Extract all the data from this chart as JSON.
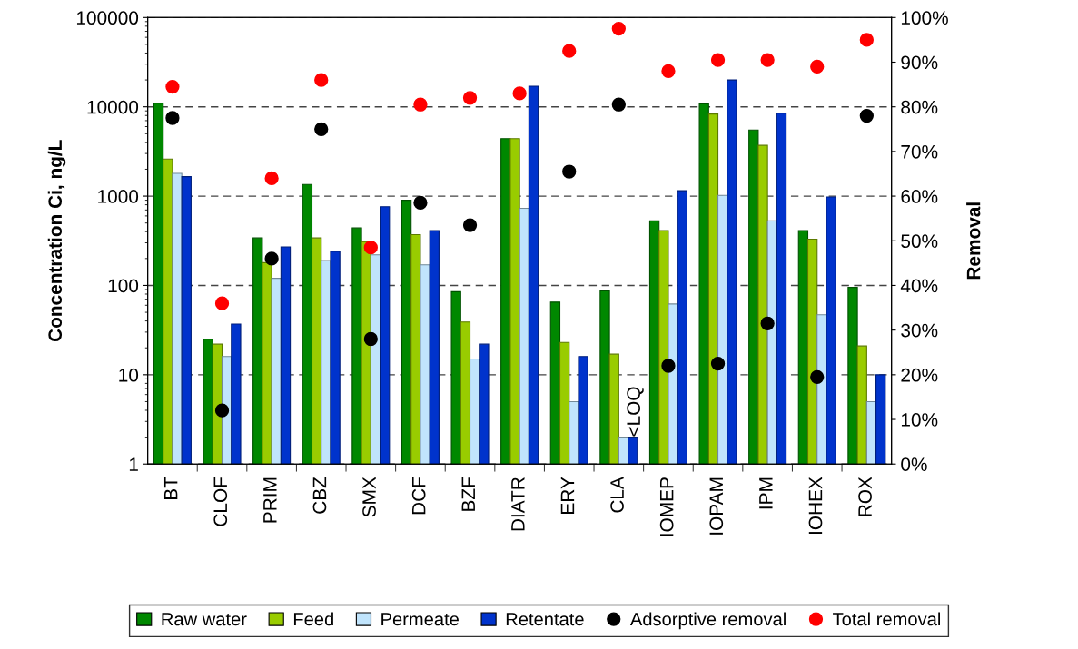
{
  "chart_data": {
    "type": "bar",
    "ylabel": "Concentration Ci, ng/L",
    "y2label": "Removal",
    "categories": [
      "BT",
      "CLOF",
      "PRIM",
      "CBZ",
      "SMX",
      "DCF",
      "BZF",
      "DIATR",
      "ERY",
      "CLA",
      "IOMEP",
      "IOPAM",
      "IPM",
      "IOHEX",
      "ROX"
    ],
    "series": [
      {
        "name": "Raw water",
        "color": "#008800",
        "values": [
          11000,
          25,
          340,
          1350,
          440,
          900,
          85,
          4400,
          65,
          87,
          530,
          10800,
          5500,
          410,
          95
        ]
      },
      {
        "name": "Feed",
        "color": "#99cc00",
        "values": [
          2600,
          22,
          180,
          340,
          310,
          370,
          39,
          4400,
          23,
          17,
          410,
          8300,
          3700,
          330,
          21
        ]
      },
      {
        "name": "Permeate",
        "color": "#c0e4fc",
        "values": [
          1800,
          16,
          120,
          190,
          220,
          170,
          15,
          730,
          5,
          2,
          62,
          1020,
          530,
          47,
          5
        ]
      },
      {
        "name": "Retentate",
        "color": "#0033cc",
        "values": [
          1650,
          37,
          270,
          240,
          760,
          410,
          22,
          17000,
          16,
          2,
          1150,
          20000,
          8500,
          980,
          10
        ]
      },
      {
        "name": "Adsorptive removal",
        "type": "scatter",
        "axis": "y2",
        "color": "#000000",
        "values": [
          77.5,
          12,
          46,
          75,
          28,
          58.5,
          53.5,
          null,
          65.5,
          80.5,
          22,
          22.5,
          31.5,
          19.5,
          78
        ]
      },
      {
        "name": "Total removal",
        "type": "scatter",
        "axis": "y2",
        "color": "#ff0000",
        "values": [
          84.5,
          36,
          64,
          86,
          48.5,
          80.5,
          82,
          83,
          92.5,
          97.5,
          88,
          90.5,
          90.5,
          89,
          95
        ]
      }
    ],
    "log": true,
    "ylim": [
      1,
      100000
    ],
    "yticks": [
      1,
      10,
      100,
      1000,
      10000,
      100000
    ],
    "y2lim": [
      0,
      100
    ],
    "y2ticks": [
      {
        "value": 0,
        "label": "0%"
      },
      {
        "value": 10,
        "label": "10%"
      },
      {
        "value": 20,
        "label": "20%"
      },
      {
        "value": 30,
        "label": "30%"
      },
      {
        "value": 40,
        "label": "40%"
      },
      {
        "value": 50,
        "label": "50%"
      },
      {
        "value": 60,
        "label": "60%"
      },
      {
        "value": 70,
        "label": "70%"
      },
      {
        "value": 80,
        "label": "80%"
      },
      {
        "value": 90,
        "label": "90%"
      },
      {
        "value": 100,
        "label": "100%"
      }
    ],
    "annotations": [
      {
        "text": "<LOQ",
        "x": "CLA",
        "y": 2
      }
    ],
    "grid": "y",
    "legend": "bottom",
    "marker": "circle"
  }
}
